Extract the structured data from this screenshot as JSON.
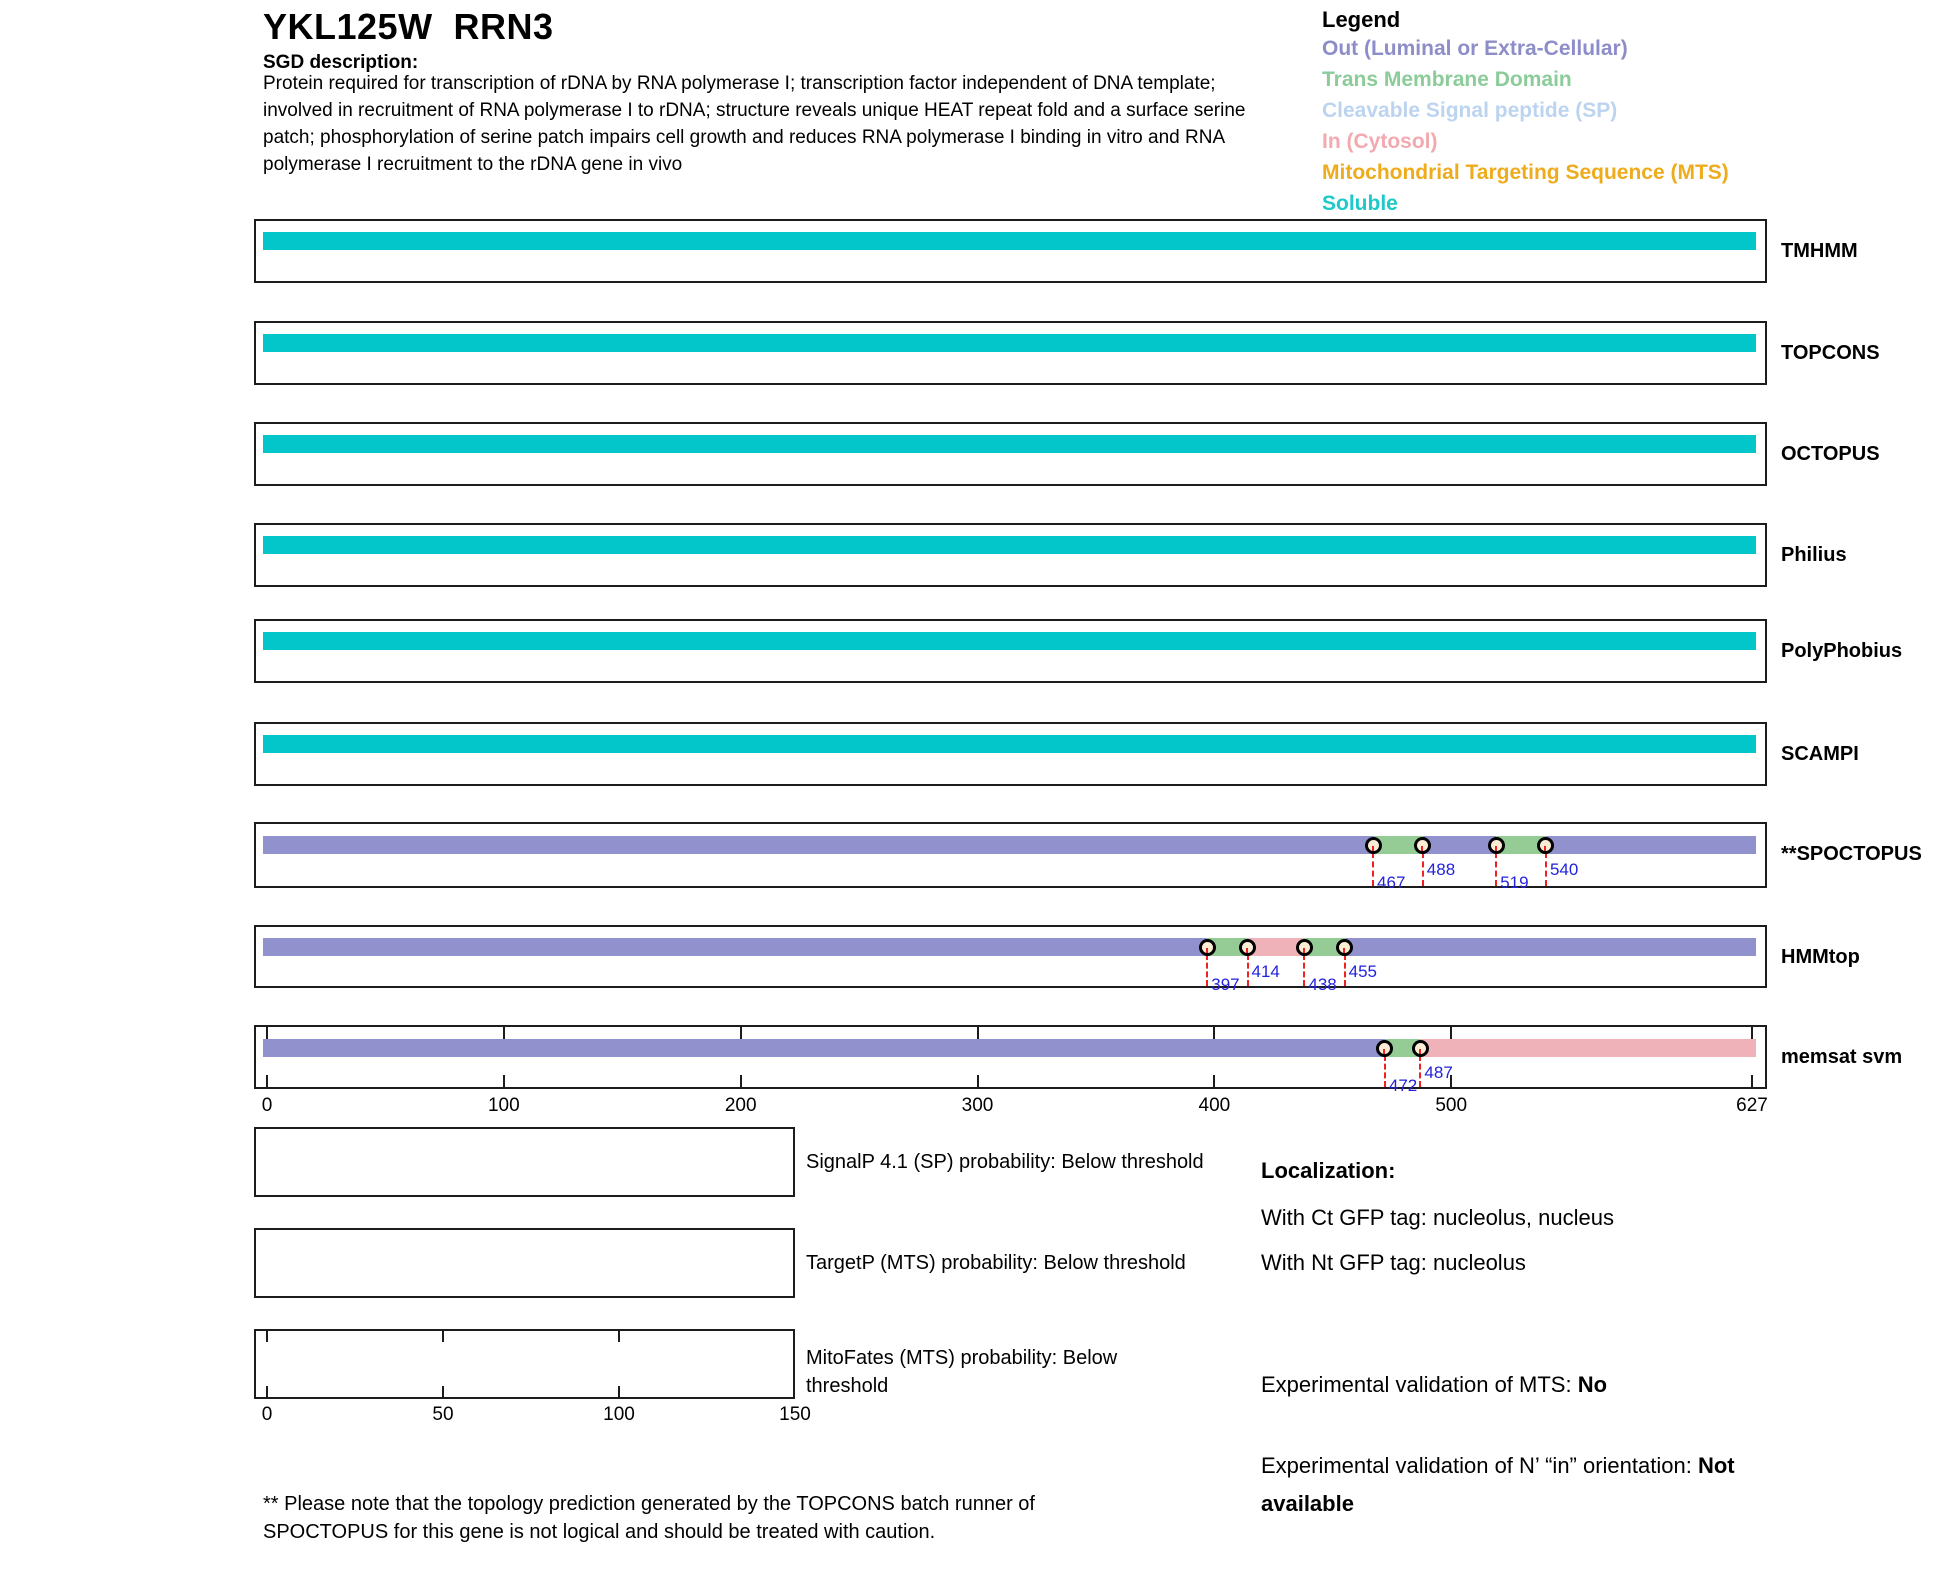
{
  "header": {
    "title": "YKL125W  RRN3",
    "sgd_label": "SGD description:",
    "description": "Protein required for transcription of rDNA by RNA polymerase I; transcription factor independent of DNA template; involved in recruitment of RNA polymerase I to rDNA; structure reveals unique HEAT repeat fold and a surface serine patch; phosphorylation of serine patch impairs cell growth and reduces RNA polymerase I binding in vitro and RNA polymerase I recruitment to the rDNA gene in vivo"
  },
  "legend": {
    "title": "Legend",
    "items": [
      {
        "label": "Out (Luminal or Extra-Cellular)",
        "color": "#8d8dc9"
      },
      {
        "label": "Trans Membrane Domain",
        "color": "#8bcc99"
      },
      {
        "label": "Cleavable Signal peptide (SP)",
        "color": "#bcd4f0"
      },
      {
        "label": "In (Cytosol)",
        "color": "#f2aab0"
      },
      {
        "label": "Mitochondrial Targeting Sequence (MTS)",
        "color": "#eeac1d"
      },
      {
        "label": "Soluble",
        "color": "#1fc9c9"
      }
    ]
  },
  "colors": {
    "soluble": "#03c6cb",
    "out": "#9191cd",
    "tm": "#95cc96",
    "in": "#efb2b8",
    "marker_fill": "#fbecd4",
    "dash_red": "#ee2222",
    "label_blue": "#2222dd"
  },
  "chart_data": {
    "type": "protein-topology-tracks",
    "sequence_length": 627,
    "x_axis": {
      "min": 0,
      "max": 627,
      "ticks": [
        0,
        100,
        200,
        300,
        400,
        500,
        627
      ]
    },
    "tracks": [
      {
        "name": "TMHMM",
        "segments": [
          {
            "start": 0,
            "end": 627,
            "type": "soluble"
          }
        ],
        "markers": []
      },
      {
        "name": "TOPCONS",
        "segments": [
          {
            "start": 0,
            "end": 627,
            "type": "soluble"
          }
        ],
        "markers": []
      },
      {
        "name": "OCTOPUS",
        "segments": [
          {
            "start": 0,
            "end": 627,
            "type": "soluble"
          }
        ],
        "markers": []
      },
      {
        "name": "Philius",
        "segments": [
          {
            "start": 0,
            "end": 627,
            "type": "soluble"
          }
        ],
        "markers": []
      },
      {
        "name": "PolyPhobius",
        "segments": [
          {
            "start": 0,
            "end": 627,
            "type": "soluble"
          }
        ],
        "markers": []
      },
      {
        "name": "SCAMPI",
        "segments": [
          {
            "start": 0,
            "end": 627,
            "type": "soluble"
          }
        ],
        "markers": []
      },
      {
        "name": "**SPOCTOPUS",
        "segments": [
          {
            "start": 0,
            "end": 467,
            "type": "out"
          },
          {
            "start": 467,
            "end": 488,
            "type": "tm"
          },
          {
            "start": 488,
            "end": 519,
            "type": "out"
          },
          {
            "start": 519,
            "end": 540,
            "type": "tm"
          },
          {
            "start": 540,
            "end": 627,
            "type": "out"
          }
        ],
        "markers": [
          {
            "pos": 467,
            "label": "467",
            "row": "low"
          },
          {
            "pos": 488,
            "label": "488",
            "row": "high"
          },
          {
            "pos": 519,
            "label": "519",
            "row": "low"
          },
          {
            "pos": 540,
            "label": "540",
            "row": "high"
          }
        ]
      },
      {
        "name": "HMMtop",
        "segments": [
          {
            "start": 0,
            "end": 397,
            "type": "out"
          },
          {
            "start": 397,
            "end": 414,
            "type": "tm"
          },
          {
            "start": 414,
            "end": 438,
            "type": "in"
          },
          {
            "start": 438,
            "end": 455,
            "type": "tm"
          },
          {
            "start": 455,
            "end": 627,
            "type": "out"
          }
        ],
        "markers": [
          {
            "pos": 397,
            "label": "397",
            "row": "low"
          },
          {
            "pos": 414,
            "label": "414",
            "row": "high"
          },
          {
            "pos": 438,
            "label": "438",
            "row": "low"
          },
          {
            "pos": 455,
            "label": "455",
            "row": "high"
          }
        ]
      },
      {
        "name": "memsat svm",
        "segments": [
          {
            "start": 0,
            "end": 472,
            "type": "out"
          },
          {
            "start": 472,
            "end": 487,
            "type": "tm"
          },
          {
            "start": 487,
            "end": 627,
            "type": "in"
          }
        ],
        "markers": [
          {
            "pos": 472,
            "label": "472",
            "row": "low"
          },
          {
            "pos": 487,
            "label": "487",
            "row": "high"
          }
        ],
        "frame_ticks": [
          0,
          100,
          200,
          300,
          400,
          500,
          627
        ]
      }
    ]
  },
  "probability_panels": [
    {
      "label": "SignalP 4.1 (SP) probability: Below threshold"
    },
    {
      "label": "TargetP (MTS) probability: Below threshold"
    },
    {
      "label": "MitoFates (MTS) probability: Below threshold",
      "axis": {
        "min": 0,
        "max": 150,
        "ticks": [
          0,
          50,
          100,
          150
        ]
      }
    }
  ],
  "localization": {
    "title": "Localization:",
    "ct": "With Ct GFP tag: nucleolus, nucleus",
    "nt": "With Nt GFP tag: nucleolus",
    "mts_label": "Experimental validation of MTS: ",
    "mts_value": "No",
    "orientation_label": "Experimental validation of N’ “in” orientation: ",
    "orientation_value": "Not available"
  },
  "footnote": {
    "text": "** Please note that the topology prediction generated by the TOPCONS batch runner of SPOCTOPUS for this gene is not logical and should be treated with caution."
  }
}
